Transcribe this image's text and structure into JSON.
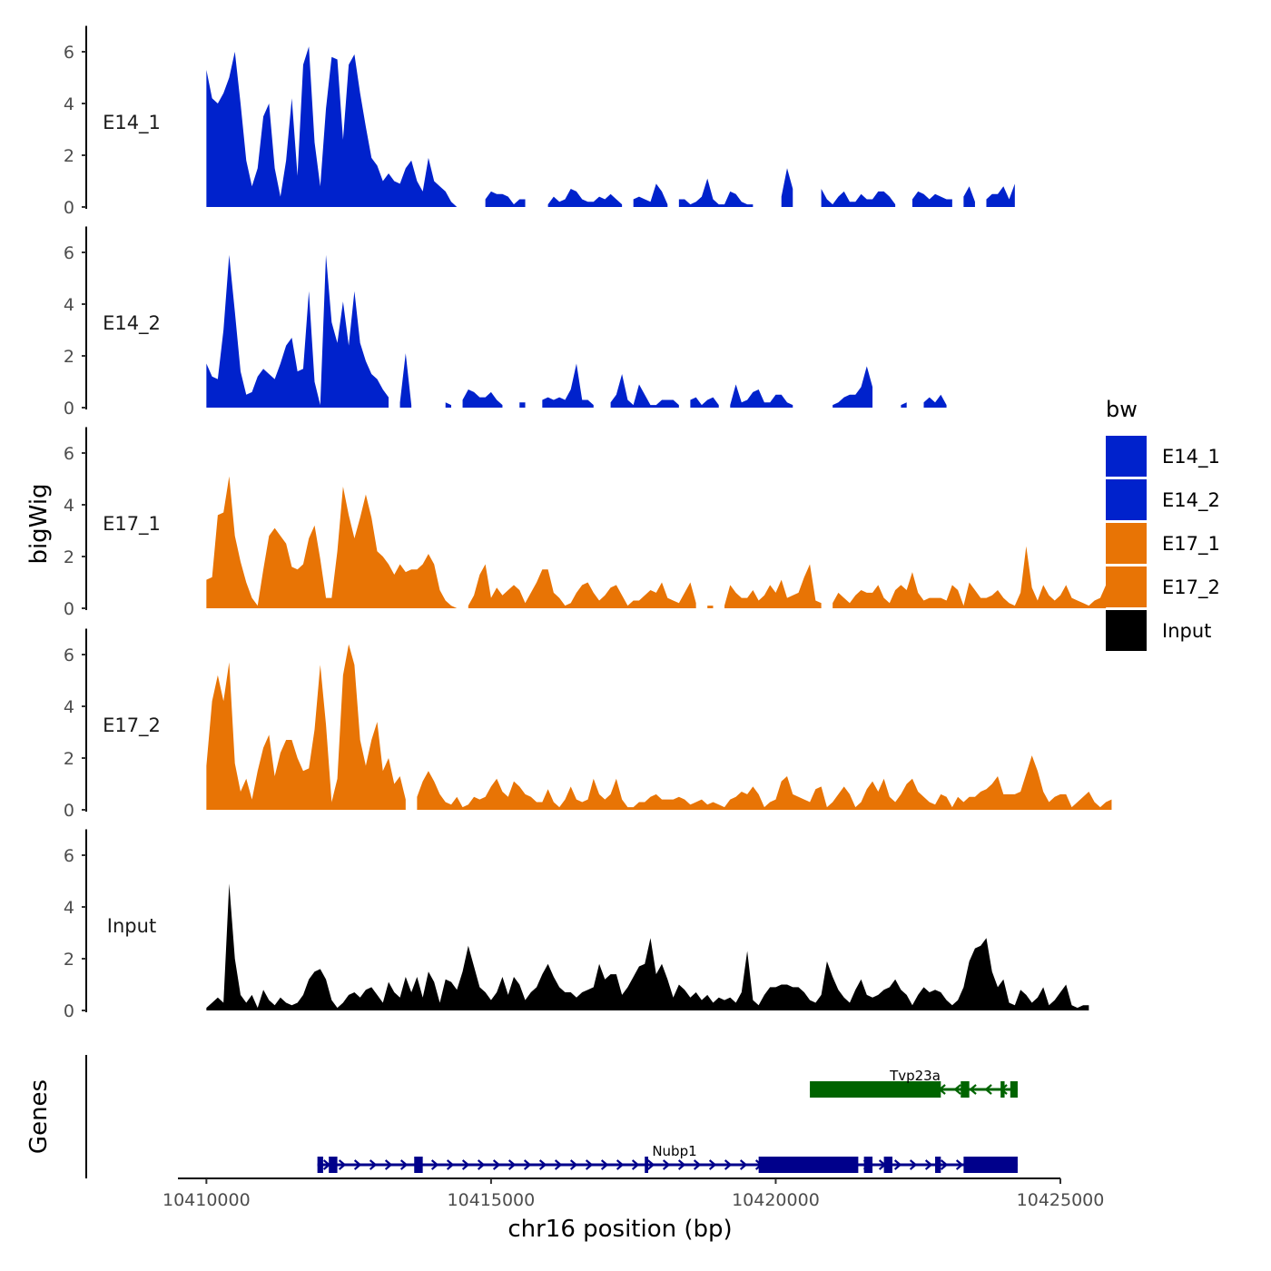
{
  "chart_data": {
    "type": "area",
    "xlabel": "chr16 position (bp)",
    "ylabel": "bigWig",
    "genes_label": "Genes",
    "xlim": [
      10409500,
      10425000
    ],
    "ylim": [
      0,
      7
    ],
    "x_ticks": [
      {
        "value": 10410000,
        "label": "10410000"
      },
      {
        "value": 10415000,
        "label": "10415000"
      },
      {
        "value": 10420000,
        "label": "10420000"
      },
      {
        "value": 10425000,
        "label": "10425000"
      }
    ],
    "y_ticks": [
      {
        "value": 0,
        "label": "0"
      },
      {
        "value": 2,
        "label": "2"
      },
      {
        "value": 4,
        "label": "4"
      },
      {
        "value": 6,
        "label": "6"
      }
    ],
    "legend": {
      "title": "bw",
      "entries": [
        {
          "label": "E14_1",
          "color": "#0022CC"
        },
        {
          "label": "E14_2",
          "color": "#0022CC"
        },
        {
          "label": "E17_1",
          "color": "#E87405"
        },
        {
          "label": "E17_2",
          "color": "#E87405"
        },
        {
          "label": "Input",
          "color": "#000000"
        }
      ]
    },
    "x_start": 10410000,
    "x_step": 100,
    "series": [
      {
        "name": "E14_1",
        "label": "E14_1",
        "color": "#0022CC",
        "values": [
          5.3,
          4.2,
          4.0,
          4.4,
          5.0,
          6.0,
          4.0,
          1.8,
          0.8,
          1.5,
          3.5,
          4.0,
          1.5,
          0.4,
          1.8,
          4.2,
          1.2,
          5.5,
          6.2,
          2.5,
          0.8,
          3.8,
          5.8,
          5.7,
          2.6,
          5.5,
          5.9,
          4.4,
          3.1,
          1.9,
          1.6,
          1.0,
          1.3,
          1.0,
          0.9,
          1.5,
          1.8,
          1.0,
          0.6,
          1.9,
          1.0,
          0.8,
          0.6,
          0.2,
          0.0,
          null,
          null,
          null,
          null,
          0.3,
          0.6,
          0.5,
          0.5,
          0.4,
          0.1,
          0.3,
          0.3,
          null,
          null,
          null,
          0.1,
          0.4,
          0.2,
          0.3,
          0.7,
          0.6,
          0.3,
          0.2,
          0.2,
          0.4,
          0.3,
          0.5,
          0.3,
          0.1,
          null,
          0.3,
          0.4,
          0.3,
          0.2,
          0.9,
          0.6,
          0.1,
          null,
          0.3,
          0.3,
          0.1,
          0.2,
          0.4,
          1.1,
          0.3,
          0.1,
          0.1,
          0.6,
          0.5,
          0.2,
          0.1,
          0.1,
          null,
          null,
          null,
          null,
          0.4,
          1.5,
          0.7,
          null,
          null,
          null,
          null,
          0.7,
          0.3,
          0.1,
          0.4,
          0.6,
          0.2,
          0.2,
          0.5,
          0.3,
          0.3,
          0.6,
          0.6,
          0.4,
          0.1,
          null,
          null,
          0.3,
          0.6,
          0.5,
          0.3,
          0.5,
          0.4,
          0.3,
          0.3,
          null,
          0.4,
          0.8,
          0.2,
          null,
          0.3,
          0.5,
          0.5,
          0.8,
          0.3,
          0.9
        ]
      },
      {
        "name": "E14_2",
        "label": "E14_2",
        "color": "#0022CC",
        "values": [
          1.7,
          1.2,
          1.1,
          3.0,
          5.9,
          3.7,
          1.4,
          0.5,
          0.6,
          1.2,
          1.5,
          1.3,
          1.1,
          1.7,
          2.4,
          2.7,
          1.4,
          1.5,
          4.5,
          1.0,
          0.1,
          5.9,
          3.3,
          2.5,
          4.1,
          2.4,
          4.5,
          2.5,
          1.8,
          1.3,
          1.1,
          0.7,
          0.4,
          null,
          0.2,
          2.1,
          0.1,
          null,
          null,
          null,
          null,
          null,
          0.2,
          0.1,
          null,
          0.3,
          0.7,
          0.6,
          0.4,
          0.4,
          0.6,
          0.3,
          0.1,
          null,
          null,
          0.2,
          0.2,
          null,
          null,
          0.3,
          0.4,
          0.3,
          0.4,
          0.3,
          0.7,
          1.7,
          0.3,
          0.3,
          0.1,
          null,
          null,
          0.2,
          0.5,
          1.3,
          0.3,
          0.1,
          0.9,
          0.5,
          0.1,
          0.1,
          0.3,
          0.3,
          0.3,
          0.1,
          null,
          0.3,
          0.4,
          0.1,
          0.3,
          0.4,
          0.1,
          null,
          0.1,
          0.9,
          0.2,
          0.3,
          0.6,
          0.7,
          0.2,
          0.2,
          0.5,
          0.5,
          0.2,
          0.1,
          null,
          null,
          null,
          null,
          null,
          null,
          0.1,
          0.2,
          0.4,
          0.5,
          0.5,
          0.8,
          1.6,
          0.8,
          null,
          null,
          null,
          null,
          0.1,
          0.2,
          null,
          null,
          0.2,
          0.4,
          0.2,
          0.5,
          0.1
        ]
      },
      {
        "name": "E17_1",
        "label": "E17_1",
        "color": "#E87405",
        "values": [
          1.1,
          1.2,
          3.6,
          3.7,
          5.1,
          2.8,
          1.8,
          1.0,
          0.4,
          0.1,
          1.5,
          2.8,
          3.1,
          2.8,
          2.5,
          1.6,
          1.5,
          1.7,
          2.7,
          3.2,
          1.9,
          0.4,
          0.4,
          2.2,
          4.7,
          3.6,
          2.7,
          3.5,
          4.4,
          3.5,
          2.2,
          2.0,
          1.7,
          1.3,
          1.7,
          1.4,
          1.5,
          1.5,
          1.7,
          2.1,
          1.7,
          0.7,
          0.3,
          0.1,
          0.0,
          null,
          0.1,
          0.5,
          1.3,
          1.7,
          0.4,
          0.8,
          0.5,
          0.7,
          0.9,
          0.7,
          0.2,
          0.6,
          1.0,
          1.5,
          1.5,
          0.6,
          0.4,
          0.1,
          0.2,
          0.6,
          0.9,
          1.0,
          0.6,
          0.3,
          0.5,
          0.8,
          0.9,
          0.5,
          0.1,
          0.3,
          0.3,
          0.5,
          0.7,
          0.6,
          1.0,
          0.4,
          0.3,
          0.2,
          0.6,
          1.0,
          0.2,
          null,
          0.1,
          0.1,
          null,
          0.1,
          0.9,
          0.6,
          0.4,
          0.4,
          0.7,
          0.3,
          0.5,
          0.9,
          0.6,
          1.1,
          0.4,
          0.5,
          0.6,
          1.2,
          1.7,
          0.3,
          0.2,
          null,
          0.2,
          0.6,
          0.4,
          0.2,
          0.5,
          0.7,
          0.6,
          0.6,
          0.9,
          0.4,
          0.2,
          0.7,
          0.9,
          0.7,
          1.4,
          0.6,
          0.3,
          0.4,
          0.4,
          0.4,
          0.3,
          0.9,
          0.7,
          0.1,
          1.0,
          0.7,
          0.4,
          0.4,
          0.5,
          0.7,
          0.4,
          0.2,
          0.1,
          0.6,
          2.4,
          0.8,
          0.3,
          0.9,
          0.5,
          0.3,
          0.5,
          0.9,
          0.4,
          0.3,
          0.2,
          0.1,
          0.3,
          0.4,
          0.9
        ]
      },
      {
        "name": "E17_2",
        "label": "E17_2",
        "color": "#E87405",
        "values": [
          1.7,
          4.2,
          5.2,
          4.2,
          5.7,
          1.8,
          0.7,
          1.2,
          0.4,
          1.5,
          2.4,
          2.9,
          1.3,
          2.2,
          2.7,
          2.7,
          2.0,
          1.5,
          1.6,
          3.1,
          5.6,
          3.3,
          0.3,
          1.2,
          5.2,
          6.4,
          5.6,
          2.7,
          1.7,
          2.7,
          3.4,
          1.5,
          2.0,
          1.0,
          1.3,
          0.4,
          null,
          0.5,
          1.1,
          1.5,
          1.1,
          0.6,
          0.3,
          0.2,
          0.5,
          0.1,
          0.2,
          0.5,
          0.4,
          0.5,
          0.9,
          1.2,
          0.7,
          0.5,
          1.1,
          0.9,
          0.6,
          0.5,
          0.3,
          0.3,
          0.8,
          0.3,
          0.1,
          0.4,
          0.9,
          0.4,
          0.3,
          0.4,
          1.2,
          0.6,
          0.4,
          0.6,
          1.2,
          0.4,
          0.1,
          0.1,
          0.3,
          0.3,
          0.5,
          0.6,
          0.4,
          0.4,
          0.4,
          0.5,
          0.4,
          0.2,
          0.3,
          0.4,
          0.2,
          0.3,
          0.2,
          0.1,
          0.4,
          0.5,
          0.7,
          0.6,
          0.9,
          0.6,
          0.1,
          0.3,
          0.4,
          1.1,
          1.3,
          0.6,
          0.5,
          0.4,
          0.3,
          0.8,
          0.9,
          0.1,
          0.3,
          0.6,
          0.9,
          0.6,
          0.1,
          0.3,
          0.8,
          1.1,
          0.7,
          1.2,
          0.5,
          0.3,
          0.6,
          1.0,
          1.2,
          0.7,
          0.5,
          0.3,
          0.2,
          0.6,
          0.5,
          0.1,
          0.5,
          0.3,
          0.5,
          0.5,
          0.7,
          0.8,
          1.0,
          1.3,
          0.6,
          0.6,
          0.6,
          0.7,
          1.4,
          2.1,
          1.5,
          0.7,
          0.3,
          0.5,
          0.6,
          0.6,
          0.1,
          0.3,
          0.5,
          0.7,
          0.3,
          0.1,
          0.3,
          0.4
        ]
      },
      {
        "name": "Input",
        "label": "Input",
        "color": "#000000",
        "values": [
          0.1,
          0.3,
          0.5,
          0.3,
          4.9,
          2.0,
          0.6,
          0.3,
          0.6,
          0.1,
          0.8,
          0.4,
          0.2,
          0.5,
          0.3,
          0.2,
          0.3,
          0.6,
          1.2,
          1.5,
          1.6,
          1.2,
          0.4,
          0.1,
          0.3,
          0.6,
          0.7,
          0.5,
          0.8,
          0.9,
          0.6,
          0.3,
          1.1,
          0.7,
          0.5,
          1.3,
          0.7,
          1.3,
          0.5,
          1.5,
          1.1,
          0.3,
          1.2,
          1.1,
          0.8,
          1.5,
          2.5,
          1.7,
          0.9,
          0.7,
          0.4,
          0.7,
          1.3,
          0.6,
          1.3,
          1.0,
          0.4,
          0.7,
          0.9,
          1.4,
          1.8,
          1.3,
          0.9,
          0.7,
          0.7,
          0.5,
          0.7,
          0.8,
          0.9,
          1.8,
          1.2,
          1.4,
          1.4,
          0.6,
          0.9,
          1.3,
          1.7,
          1.8,
          2.8,
          1.4,
          1.8,
          1.2,
          0.5,
          1.0,
          0.8,
          0.5,
          0.7,
          0.4,
          0.6,
          0.3,
          0.5,
          0.4,
          0.5,
          0.3,
          0.7,
          2.3,
          0.4,
          0.2,
          0.6,
          0.9,
          0.9,
          1.0,
          1.0,
          0.9,
          0.9,
          0.7,
          0.4,
          0.3,
          0.6,
          1.9,
          1.3,
          0.8,
          0.5,
          0.3,
          0.8,
          1.2,
          0.6,
          0.5,
          0.6,
          0.8,
          0.9,
          1.2,
          0.8,
          0.6,
          0.2,
          0.6,
          0.9,
          0.7,
          0.8,
          0.7,
          0.4,
          0.2,
          0.4,
          0.9,
          1.9,
          2.4,
          2.5,
          2.8,
          1.5,
          0.9,
          1.2,
          0.3,
          0.2,
          0.8,
          0.6,
          0.3,
          0.5,
          0.9,
          0.2,
          0.4,
          0.7,
          1.0,
          0.2,
          0.1,
          0.2,
          0.2
        ]
      }
    ],
    "genes": [
      {
        "name": "Tvp23a",
        "label": "Tvp23a",
        "color": "#006400",
        "strand": "-",
        "start": 10420600,
        "end": 10424250,
        "exons": [
          [
            10420600,
            10422900
          ],
          [
            10423250,
            10423400
          ],
          [
            10423950,
            10424020
          ],
          [
            10424120,
            10424250
          ]
        ]
      },
      {
        "name": "Nubp1",
        "label": "Nubp1",
        "color": "#00008B",
        "strand": "+",
        "start": 10411950,
        "end": 10424250,
        "exons": [
          [
            10411950,
            10412050
          ],
          [
            10412150,
            10412300
          ],
          [
            10413650,
            10413800
          ],
          [
            10417700,
            10417760
          ],
          [
            10419700,
            10421450
          ],
          [
            10421550,
            10421700
          ],
          [
            10421900,
            10422050
          ],
          [
            10422800,
            10422900
          ],
          [
            10423300,
            10424250
          ]
        ]
      }
    ]
  }
}
